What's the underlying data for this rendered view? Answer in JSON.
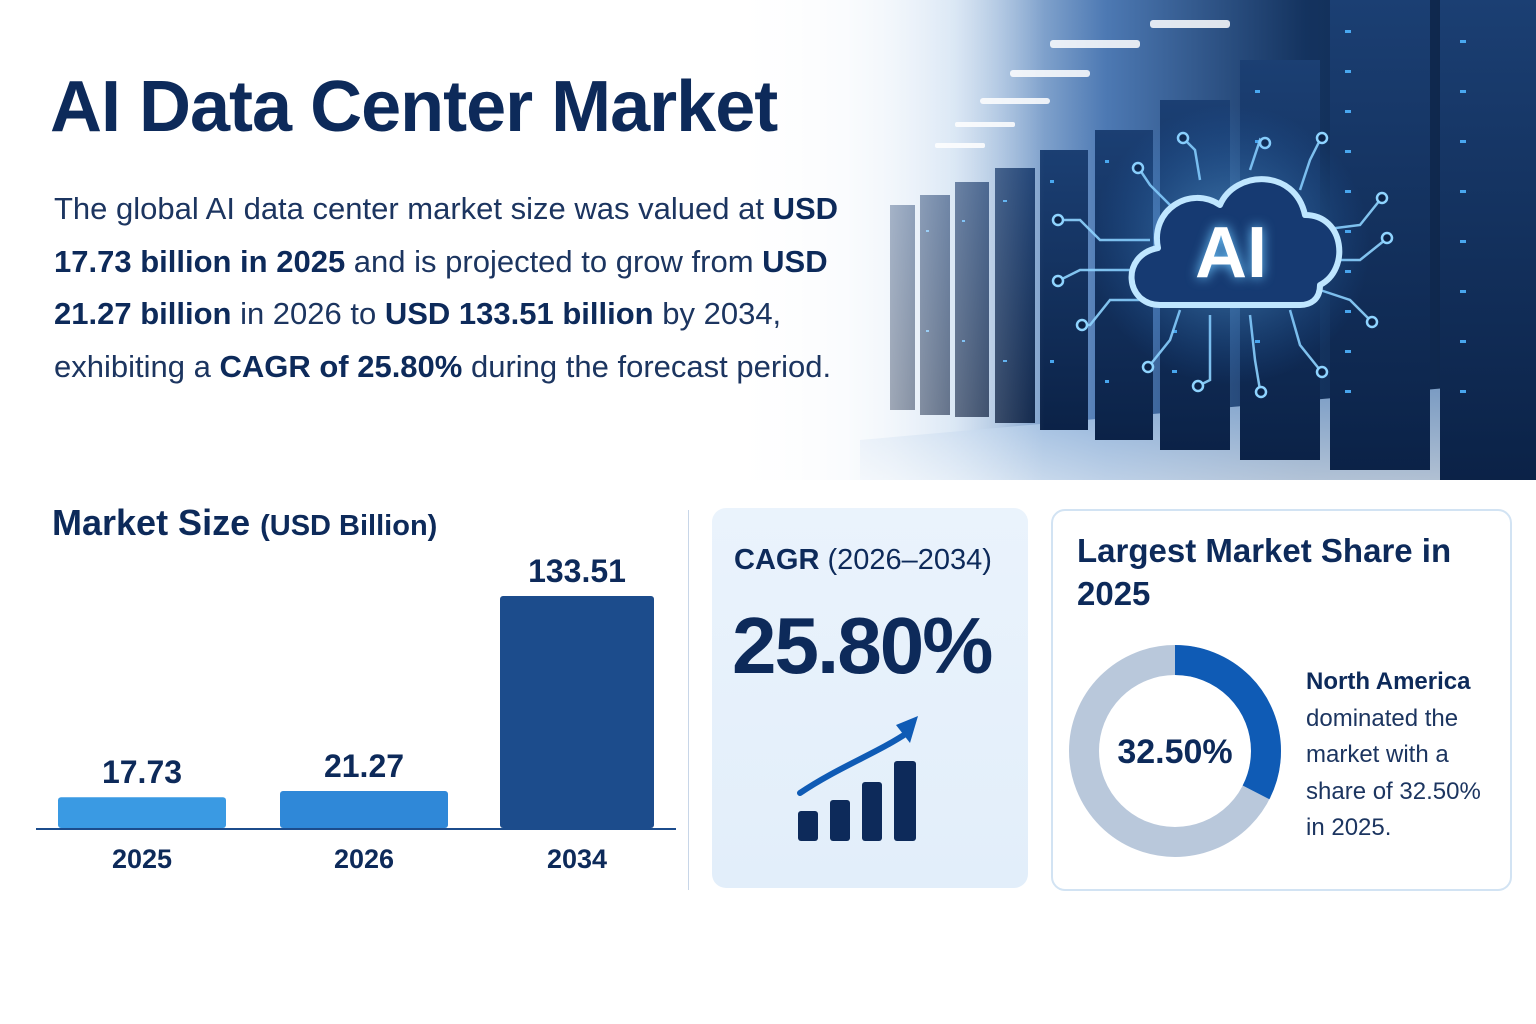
{
  "header": {
    "title": "AI Data Center Market",
    "intro": {
      "t1": "The global AI data center market size was valued at ",
      "b1": "USD 17.73 billion in 2025",
      "t2": " and is projected to grow from ",
      "b2": "USD 21.27 billion",
      "t3": " in 2026 to ",
      "b3": "USD 133.51 billion",
      "t4": " by 2034, exhibiting a ",
      "b4": "CAGR of 25.80%",
      "t5": " during the forecast period."
    },
    "badge_text": "AI"
  },
  "market_size": {
    "title": "Market Size",
    "unit": "(USD Billion)"
  },
  "chart_data": {
    "type": "bar",
    "title": "Market Size (USD Billion)",
    "categories": [
      "2025",
      "2026",
      "2034"
    ],
    "values": [
      17.73,
      21.27,
      133.51
    ],
    "labels": [
      "17.73",
      "21.27",
      "133.51"
    ],
    "colors": [
      "#3a9ae3",
      "#2f88d8",
      "#1c4c8c"
    ],
    "xlabel": "",
    "ylabel": "",
    "ylim": [
      0,
      133.51
    ],
    "grid": false,
    "legend": "none"
  },
  "cagr": {
    "label_bold": "CAGR",
    "label_period": " (2026–2034)",
    "value": "25.80%",
    "icon": "growth-chart-icon"
  },
  "share": {
    "title": "Largest Market Share in 2025",
    "region": "North America",
    "description": "dominated the market with a share of 32.50% in 2025.",
    "value_label": "32.50%",
    "percent": 32.5,
    "colors": {
      "share": "#0f5bb5",
      "rest": "#b9c8db"
    }
  },
  "colors": {
    "navy": "#0d2a5a",
    "accent": "#0f5bb5"
  }
}
